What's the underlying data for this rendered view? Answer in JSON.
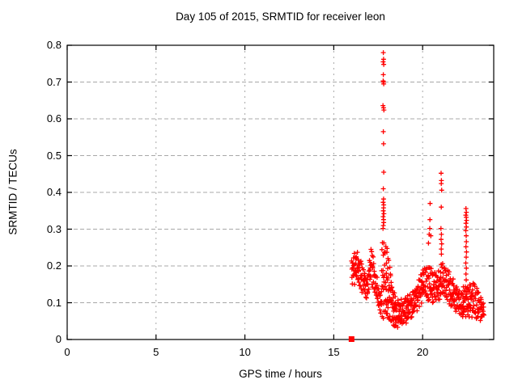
{
  "colors": {
    "points": "#ff0000",
    "frame": "#000000",
    "grid": "#a8a8a8",
    "background": "#ffffff",
    "text": "#000000"
  },
  "chart_data": {
    "type": "scatter",
    "title": "Day 105 of 2015, SRMTID for receiver leon",
    "xlabel": "GPS time / hours",
    "ylabel": "SRMTID / TECUs",
    "xlim": [
      0,
      24
    ],
    "ylim": [
      0,
      0.8
    ],
    "xticks": [
      0,
      5,
      10,
      15,
      20
    ],
    "yticks": [
      0,
      0.1,
      0.2,
      0.3,
      0.4,
      0.5,
      0.6,
      0.7,
      0.8
    ],
    "grid": true,
    "legend": "none",
    "marker": "plus",
    "special_markers": [
      {
        "shape": "filled-square",
        "x": 16.0,
        "y": 0.0
      }
    ],
    "outlier_points": [
      [
        17.79,
        0.78
      ],
      [
        17.8,
        0.762
      ],
      [
        17.78,
        0.755
      ],
      [
        17.81,
        0.748
      ],
      [
        17.79,
        0.72
      ],
      [
        17.78,
        0.703
      ],
      [
        17.8,
        0.7
      ],
      [
        17.81,
        0.695
      ],
      [
        17.77,
        0.636
      ],
      [
        17.8,
        0.63
      ],
      [
        17.82,
        0.624
      ],
      [
        17.79,
        0.565
      ],
      [
        17.8,
        0.532
      ],
      [
        17.81,
        0.455
      ],
      [
        17.79,
        0.41
      ],
      [
        17.8,
        0.382
      ],
      [
        17.78,
        0.373
      ],
      [
        17.81,
        0.366
      ],
      [
        17.8,
        0.358
      ],
      [
        17.79,
        0.35
      ],
      [
        17.82,
        0.342
      ],
      [
        17.78,
        0.334
      ],
      [
        17.8,
        0.326
      ],
      [
        17.81,
        0.318
      ],
      [
        17.79,
        0.31
      ],
      [
        17.77,
        0.302
      ],
      [
        20.33,
        0.262
      ],
      [
        20.37,
        0.286
      ],
      [
        20.4,
        0.302
      ],
      [
        20.41,
        0.326
      ],
      [
        20.42,
        0.37
      ],
      [
        20.46,
        0.282
      ],
      [
        21.04,
        0.452
      ],
      [
        21.06,
        0.432
      ],
      [
        21.05,
        0.424
      ],
      [
        21.07,
        0.406
      ],
      [
        21.05,
        0.36
      ],
      [
        21.03,
        0.302
      ],
      [
        21.06,
        0.286
      ],
      [
        21.04,
        0.272
      ],
      [
        21.07,
        0.26
      ],
      [
        21.05,
        0.246
      ],
      [
        21.06,
        0.232
      ],
      [
        22.44,
        0.356
      ],
      [
        22.46,
        0.346
      ],
      [
        22.43,
        0.338
      ],
      [
        22.45,
        0.332
      ],
      [
        22.47,
        0.324
      ],
      [
        22.44,
        0.316
      ],
      [
        22.46,
        0.306
      ],
      [
        22.43,
        0.296
      ],
      [
        22.45,
        0.282
      ],
      [
        22.46,
        0.266
      ],
      [
        22.44,
        0.252
      ],
      [
        22.47,
        0.238
      ],
      [
        22.45,
        0.224
      ],
      [
        22.43,
        0.208
      ],
      [
        22.46,
        0.194
      ],
      [
        22.44,
        0.178
      ],
      [
        22.45,
        0.162
      ]
    ],
    "density_strips": [
      {
        "h0": 16.0,
        "h1": 16.25,
        "lo0": 0.15,
        "hi0": 0.22,
        "lo1": 0.148,
        "hi1": 0.255,
        "step": 0.04,
        "per": 3
      },
      {
        "h0": 16.25,
        "h1": 16.9,
        "lo0": 0.148,
        "hi0": 0.255,
        "lo1": 0.105,
        "hi1": 0.168,
        "step": 0.04,
        "per": 3
      },
      {
        "h0": 16.9,
        "h1": 17.1,
        "lo0": 0.118,
        "hi0": 0.17,
        "lo1": 0.148,
        "hi1": 0.26,
        "step": 0.04,
        "per": 3
      },
      {
        "h0": 17.1,
        "h1": 17.68,
        "lo0": 0.148,
        "hi0": 0.26,
        "lo1": 0.065,
        "hi1": 0.105,
        "step": 0.04,
        "per": 3
      },
      {
        "h0": 17.7,
        "h1": 18.0,
        "lo0": 0.058,
        "hi0": 0.285,
        "lo1": 0.05,
        "hi1": 0.245,
        "step": 0.035,
        "per": 4
      },
      {
        "h0": 18.0,
        "h1": 18.5,
        "lo0": 0.048,
        "hi0": 0.245,
        "lo1": 0.03,
        "hi1": 0.112,
        "step": 0.035,
        "per": 4
      },
      {
        "h0": 18.5,
        "h1": 19.4,
        "lo0": 0.028,
        "hi0": 0.105,
        "lo1": 0.055,
        "hi1": 0.125,
        "step": 0.04,
        "per": 3
      },
      {
        "h0": 19.4,
        "h1": 20.05,
        "lo0": 0.055,
        "hi0": 0.125,
        "lo1": 0.108,
        "hi1": 0.2,
        "step": 0.04,
        "per": 3
      },
      {
        "h0": 20.05,
        "h1": 20.55,
        "lo0": 0.108,
        "hi0": 0.205,
        "lo1": 0.1,
        "hi1": 0.195,
        "step": 0.04,
        "per": 3
      },
      {
        "h0": 20.55,
        "h1": 21.0,
        "lo0": 0.095,
        "hi0": 0.182,
        "lo1": 0.105,
        "hi1": 0.19,
        "step": 0.04,
        "per": 3
      },
      {
        "h0": 21.0,
        "h1": 21.2,
        "lo0": 0.11,
        "hi0": 0.22,
        "lo1": 0.115,
        "hi1": 0.205,
        "step": 0.04,
        "per": 3
      },
      {
        "h0": 21.2,
        "h1": 22.3,
        "lo0": 0.11,
        "hi0": 0.208,
        "lo1": 0.052,
        "hi1": 0.122,
        "step": 0.04,
        "per": 3
      },
      {
        "h0": 22.3,
        "h1": 22.55,
        "lo0": 0.058,
        "hi0": 0.148,
        "lo1": 0.062,
        "hi1": 0.152,
        "step": 0.04,
        "per": 3
      },
      {
        "h0": 22.55,
        "h1": 22.95,
        "lo0": 0.055,
        "hi0": 0.142,
        "lo1": 0.058,
        "hi1": 0.168,
        "step": 0.04,
        "per": 3
      },
      {
        "h0": 22.95,
        "h1": 23.45,
        "lo0": 0.05,
        "hi0": 0.158,
        "lo1": 0.052,
        "hi1": 0.096,
        "step": 0.04,
        "per": 3
      }
    ]
  }
}
